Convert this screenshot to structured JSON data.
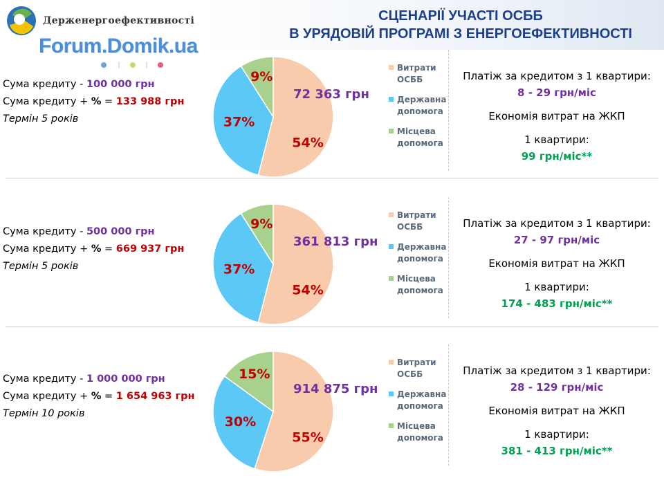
{
  "header": {
    "org_name": "Держенергоефективності",
    "watermark": "Forum.Domik.ua",
    "title_line1": "СЦЕНАРІЇ УЧАСТІ ОСББ",
    "title_line2": "В УРЯДОВІЙ ПРОГРАМІ З ЕНЕРГОЕФЕКТИВНОСТІ"
  },
  "colors": {
    "osbb": "#f8cbad",
    "state": "#5bc8f5",
    "local": "#a9d18e",
    "purple": "#7030a0",
    "red": "#c00000",
    "green": "#00a050"
  },
  "labels": {
    "loan_sum": "Сума кредиту -",
    "loan_sum_pct_a": "Сума кредиту +",
    "pct_sign": "%",
    "equals": "=",
    "payment_title": "Платіж за кредитом з 1 квартири:",
    "savings_title": "Економія витрат на ЖКП",
    "per_apartment": "1 квартири:"
  },
  "scenarios": [
    {
      "loan": "100 000 грн",
      "loan_total": "133 988 грн",
      "term": "Термін 5 років",
      "osbb_amount": "72 363 грн",
      "payment": "8 - 29 грн/міс",
      "savings": "99 грн/міс**"
    },
    {
      "loan": "500 000 грн",
      "loan_total": "669 937 грн",
      "term": "Термін 5 років",
      "osbb_amount": "361 813 грн",
      "payment": "27 - 97 грн/міс",
      "savings": "174 - 483 грн/міс**"
    },
    {
      "loan": "1 000 000 грн",
      "loan_total": "1 654 963 грн",
      "term": "Термін 10 років",
      "osbb_amount": "914 875 грн",
      "payment": "28 - 129 грн/міс",
      "savings": "381 - 413 грн/міс**"
    }
  ],
  "chart_data": [
    {
      "type": "pie",
      "categories": [
        "Витрати ОСББ",
        "Державна допомога",
        "Місцева допомога"
      ],
      "values": [
        54,
        37,
        9
      ],
      "data_labels": [
        "54%",
        "37%",
        "9%"
      ],
      "legend": "right"
    },
    {
      "type": "pie",
      "categories": [
        "Витрати ОСББ",
        "Державна допомога",
        "Місцева допомога"
      ],
      "values": [
        54,
        37,
        9
      ],
      "data_labels": [
        "54%",
        "37%",
        "9%"
      ],
      "legend": "right"
    },
    {
      "type": "pie",
      "categories": [
        "Витрати ОСББ",
        "Державна допомога",
        "Місцева допомога"
      ],
      "values": [
        55,
        30,
        15
      ],
      "data_labels": [
        "55%",
        "30%",
        "15%"
      ],
      "legend": "right"
    }
  ]
}
